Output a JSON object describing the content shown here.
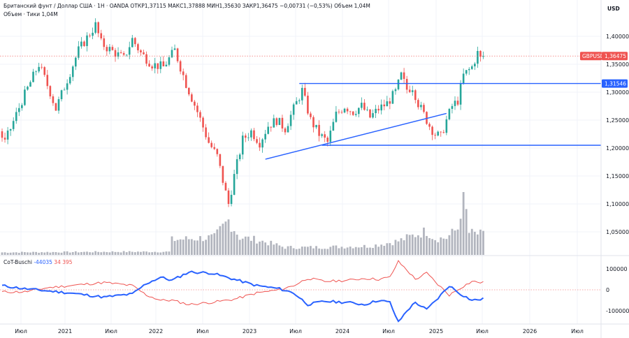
{
  "legend": {
    "instrument": "Британский фунт / Доллар США · 1Н · OANDA",
    "open_label": "ОТКР",
    "open": "1,37115",
    "high_label": "МАКС",
    "high": "1,37888",
    "low_label": "МИН",
    "low": "1,35630",
    "close_label": "ЗАКР",
    "close": "1,36475",
    "change": "−0,00731 (−0,53%)",
    "volume_label": "Объем",
    "volume": "1,04M",
    "ticks_line": "Объем · Тики  1,04M"
  },
  "indicator": {
    "name": "CoT-Buschi",
    "value_blue": "-44035",
    "value_red": "34 395",
    "ticks": [
      "100000",
      "0",
      "-100000"
    ]
  },
  "currency": "USD",
  "colors": {
    "up": "#26a69a",
    "down": "#ef5350",
    "trend": "#2962ff",
    "volume": "#b2b5be",
    "cot_blue": "#2962ff",
    "cot_red": "#ef5350",
    "grid": "#f0f3fa"
  },
  "chart_data": {
    "type": "candlestick",
    "symbol": "GBPUSD",
    "last_price": 1.36475,
    "last_price_label": "1,36475",
    "level_label": "1,31546",
    "price_ticks": [
      "1,40000",
      "1,35000",
      "1,30000",
      "1,25000",
      "1,20000",
      "1,15000",
      "1,10000",
      "1,05000"
    ],
    "time_ticks": [
      "Июл",
      "2021",
      "Июл",
      "2022",
      "Июл",
      "2023",
      "Июл",
      "2024",
      "Июл",
      "2025",
      "Июл",
      "2026",
      "Июл"
    ],
    "ylim": [
      1.015,
      1.465
    ],
    "price_anchors": [
      [
        0,
        1.23
      ],
      [
        2,
        1.21
      ],
      [
        8,
        1.285
      ],
      [
        14,
        1.35
      ],
      [
        18,
        1.3
      ],
      [
        20,
        1.27
      ],
      [
        28,
        1.375
      ],
      [
        34,
        1.42
      ],
      [
        36,
        1.388
      ],
      [
        38,
        1.38
      ],
      [
        44,
        1.36
      ],
      [
        47,
        1.395
      ],
      [
        50,
        1.37
      ],
      [
        54,
        1.35
      ],
      [
        58,
        1.345
      ],
      [
        62,
        1.375
      ],
      [
        66,
        1.315
      ],
      [
        70,
        1.265
      ],
      [
        74,
        1.21
      ],
      [
        77,
        1.185
      ],
      [
        80,
        1.12
      ],
      [
        81,
        1.1
      ],
      [
        83,
        1.15
      ],
      [
        86,
        1.215
      ],
      [
        89,
        1.23
      ],
      [
        92,
        1.21
      ],
      [
        95,
        1.24
      ],
      [
        98,
        1.25
      ],
      [
        101,
        1.235
      ],
      [
        104,
        1.27
      ],
      [
        107,
        1.303
      ],
      [
        110,
        1.25
      ],
      [
        113,
        1.225
      ],
      [
        116,
        1.21
      ],
      [
        119,
        1.26
      ],
      [
        122,
        1.275
      ],
      [
        125,
        1.265
      ],
      [
        128,
        1.275
      ],
      [
        131,
        1.255
      ],
      [
        134,
        1.27
      ],
      [
        137,
        1.28
      ],
      [
        140,
        1.3
      ],
      [
        142,
        1.33
      ],
      [
        144,
        1.305
      ],
      [
        146,
        1.31
      ],
      [
        148,
        1.28
      ],
      [
        150,
        1.26
      ],
      [
        152,
        1.24
      ],
      [
        154,
        1.225
      ],
      [
        156,
        1.22
      ],
      [
        158,
        1.25
      ],
      [
        160,
        1.275
      ],
      [
        162,
        1.285
      ],
      [
        164,
        1.33
      ],
      [
        167,
        1.345
      ],
      [
        169,
        1.37
      ],
      [
        170,
        1.36
      ]
    ],
    "volume_anchors": [
      [
        0,
        0.04
      ],
      [
        40,
        0.05
      ],
      [
        59,
        0.05
      ],
      [
        60,
        0.24
      ],
      [
        75,
        0.28
      ],
      [
        80,
        0.55
      ],
      [
        84,
        0.28
      ],
      [
        90,
        0.24
      ],
      [
        100,
        0.12
      ],
      [
        110,
        0.12
      ],
      [
        120,
        0.13
      ],
      [
        130,
        0.14
      ],
      [
        140,
        0.22
      ],
      [
        146,
        0.32
      ],
      [
        150,
        0.38
      ],
      [
        153,
        0.26
      ],
      [
        157,
        0.27
      ],
      [
        161,
        0.42
      ],
      [
        163,
        1.0
      ],
      [
        165,
        0.35
      ],
      [
        170,
        0.32
      ]
    ],
    "cot_blue_anchors": [
      [
        0,
        20000
      ],
      [
        8,
        5000
      ],
      [
        16,
        -5000
      ],
      [
        24,
        -15000
      ],
      [
        36,
        -35000
      ],
      [
        46,
        -20000
      ],
      [
        51,
        30000
      ],
      [
        56,
        60000
      ],
      [
        60,
        45000
      ],
      [
        66,
        85000
      ],
      [
        74,
        80000
      ],
      [
        82,
        50000
      ],
      [
        90,
        20000
      ],
      [
        98,
        5000
      ],
      [
        103,
        -15000
      ],
      [
        108,
        -70000
      ],
      [
        114,
        -55000
      ],
      [
        122,
        -60000
      ],
      [
        128,
        -70000
      ],
      [
        133,
        -50000
      ],
      [
        137,
        -60000
      ],
      [
        140,
        -155000
      ],
      [
        143,
        -100000
      ],
      [
        146,
        -60000
      ],
      [
        150,
        -95000
      ],
      [
        154,
        -40000
      ],
      [
        158,
        20000
      ],
      [
        162,
        -20000
      ],
      [
        166,
        -50000
      ],
      [
        170,
        -44000
      ]
    ],
    "cot_red_anchors": [
      [
        0,
        -10000
      ],
      [
        8,
        -10000
      ],
      [
        16,
        10000
      ],
      [
        24,
        20000
      ],
      [
        36,
        35000
      ],
      [
        46,
        20000
      ],
      [
        51,
        -25000
      ],
      [
        56,
        -50000
      ],
      [
        60,
        -50000
      ],
      [
        66,
        -70000
      ],
      [
        74,
        -60000
      ],
      [
        82,
        -45000
      ],
      [
        90,
        -15000
      ],
      [
        98,
        0
      ],
      [
        103,
        20000
      ],
      [
        108,
        55000
      ],
      [
        114,
        40000
      ],
      [
        122,
        45000
      ],
      [
        128,
        55000
      ],
      [
        133,
        50000
      ],
      [
        137,
        60000
      ],
      [
        140,
        135000
      ],
      [
        143,
        95000
      ],
      [
        146,
        50000
      ],
      [
        150,
        80000
      ],
      [
        154,
        25000
      ],
      [
        158,
        -25000
      ],
      [
        162,
        10000
      ],
      [
        166,
        40000
      ],
      [
        170,
        34000
      ]
    ],
    "trendlines": [
      {
        "from": [
          93,
          1.18
        ],
        "to": [
          157,
          1.262
        ]
      },
      {
        "from": [
          105,
          1.3155
        ],
        "to": [
          214,
          1.3155
        ]
      },
      {
        "from": [
          113,
          1.205
        ],
        "to": [
          214,
          1.205
        ]
      }
    ]
  }
}
